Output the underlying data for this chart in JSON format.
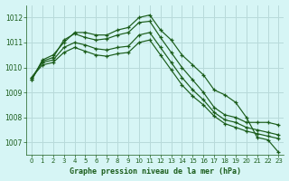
{
  "lines": [
    {
      "x": [
        0,
        1,
        2,
        3,
        4,
        5,
        6,
        7,
        8,
        9,
        10,
        11,
        12,
        13,
        14,
        15,
        16,
        17,
        18,
        19,
        20,
        21,
        22,
        23
      ],
      "y": [
        1009.5,
        1010.3,
        1010.5,
        1011.0,
        1011.4,
        1011.4,
        1011.3,
        1011.3,
        1011.5,
        1011.6,
        1012.0,
        1012.1,
        1011.5,
        1011.1,
        1010.5,
        1010.1,
        1009.7,
        1009.1,
        1008.9,
        1008.6,
        1008.0,
        1007.2,
        1007.1,
        1006.6
      ],
      "marker": "+"
    },
    {
      "x": [
        0,
        1,
        2,
        3,
        4,
        5,
        6,
        7,
        8,
        9,
        10,
        11,
        12,
        13,
        14,
        15,
        16,
        17,
        18,
        19,
        20,
        21,
        22,
        23
      ],
      "y": [
        1009.5,
        1010.25,
        1010.4,
        1011.1,
        1011.35,
        1011.2,
        1011.1,
        1011.15,
        1011.3,
        1011.4,
        1011.8,
        1011.85,
        1011.2,
        1010.6,
        1010.0,
        1009.5,
        1009.0,
        1008.4,
        1008.1,
        1008.0,
        1007.8,
        1007.8,
        1007.8,
        1007.7
      ],
      "marker": "+"
    },
    {
      "x": [
        0,
        1,
        2,
        3,
        4,
        5,
        6,
        7,
        8,
        9,
        10,
        11,
        12,
        13,
        14,
        15,
        16,
        17,
        18,
        19,
        20,
        21,
        22,
        23
      ],
      "y": [
        1009.6,
        1010.2,
        1010.3,
        1010.8,
        1011.0,
        1010.9,
        1010.75,
        1010.7,
        1010.8,
        1010.85,
        1011.3,
        1011.4,
        1010.8,
        1010.2,
        1009.6,
        1009.1,
        1008.7,
        1008.2,
        1007.9,
        1007.8,
        1007.6,
        1007.5,
        1007.4,
        1007.3
      ],
      "marker": "+"
    },
    {
      "x": [
        0,
        1,
        2,
        3,
        4,
        5,
        6,
        7,
        8,
        9,
        10,
        11,
        12,
        13,
        14,
        15,
        16,
        17,
        18,
        19,
        20,
        21,
        22,
        23
      ],
      "y": [
        1009.6,
        1010.1,
        1010.2,
        1010.6,
        1010.8,
        1010.65,
        1010.5,
        1010.45,
        1010.55,
        1010.6,
        1011.0,
        1011.1,
        1010.5,
        1009.9,
        1009.3,
        1008.85,
        1008.5,
        1008.05,
        1007.75,
        1007.6,
        1007.45,
        1007.35,
        1007.25,
        1007.15
      ],
      "marker": "+"
    }
  ],
  "line_color": "#1a5c1a",
  "background_color": "#d6f5f5",
  "grid_color": "#b8dada",
  "xlabel": "Graphe pression niveau de la mer (hPa)",
  "xlabel_color": "#1a5c1a",
  "tick_color": "#1a5c1a",
  "ylim": [
    1006.5,
    1012.5
  ],
  "xlim": [
    -0.5,
    23.5
  ],
  "yticks": [
    1007,
    1008,
    1009,
    1010,
    1011,
    1012
  ],
  "xticks": [
    0,
    1,
    2,
    3,
    4,
    5,
    6,
    7,
    8,
    9,
    10,
    11,
    12,
    13,
    14,
    15,
    16,
    17,
    18,
    19,
    20,
    21,
    22,
    23
  ]
}
